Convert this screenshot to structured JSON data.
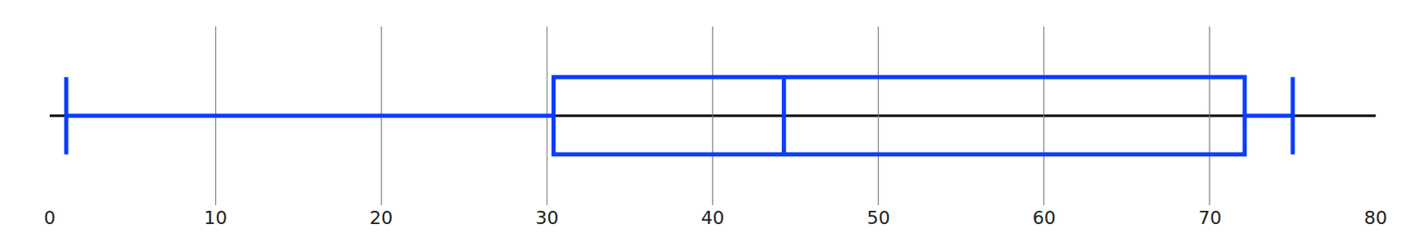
{
  "chart_data": {
    "type": "box",
    "orientation": "horizontal",
    "min": 1,
    "q1": 30.4,
    "median": 44.3,
    "q3": 72.1,
    "max": 75,
    "color": "#0a3cff",
    "xlim": [
      0,
      80
    ],
    "xticks": [
      0,
      10,
      20,
      30,
      40,
      50,
      60,
      70,
      80
    ],
    "grid": true,
    "tick_labels": "x"
  }
}
